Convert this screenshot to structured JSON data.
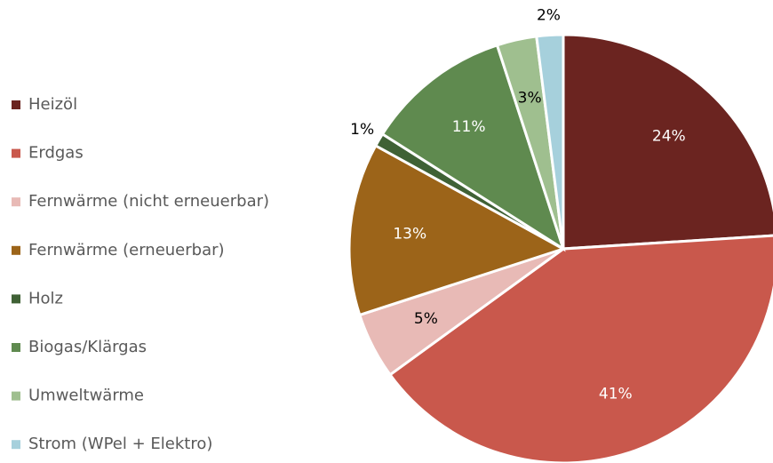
{
  "chart_data": {
    "type": "pie",
    "categories": [
      "Heizöl",
      "Erdgas",
      "Fernwärme (nicht erneuerbar)",
      "Fernwärme (erneuerbar)",
      "Holz",
      "Biogas/Klärgas",
      "Umweltwärme",
      "Strom (WPel + Elektro)"
    ],
    "values": [
      24,
      41,
      5,
      13,
      1,
      11,
      3,
      2
    ],
    "value_labels": [
      "24%",
      "41%",
      "5%",
      "13%",
      "1%",
      "11%",
      "3%",
      "2%"
    ],
    "colors": [
      "#6b2420",
      "#c9584c",
      "#e8bab6",
      "#9c6419",
      "#3f6135",
      "#5f8a4f",
      "#9fbf8f",
      "#a6d0dc"
    ],
    "legend": "left"
  }
}
